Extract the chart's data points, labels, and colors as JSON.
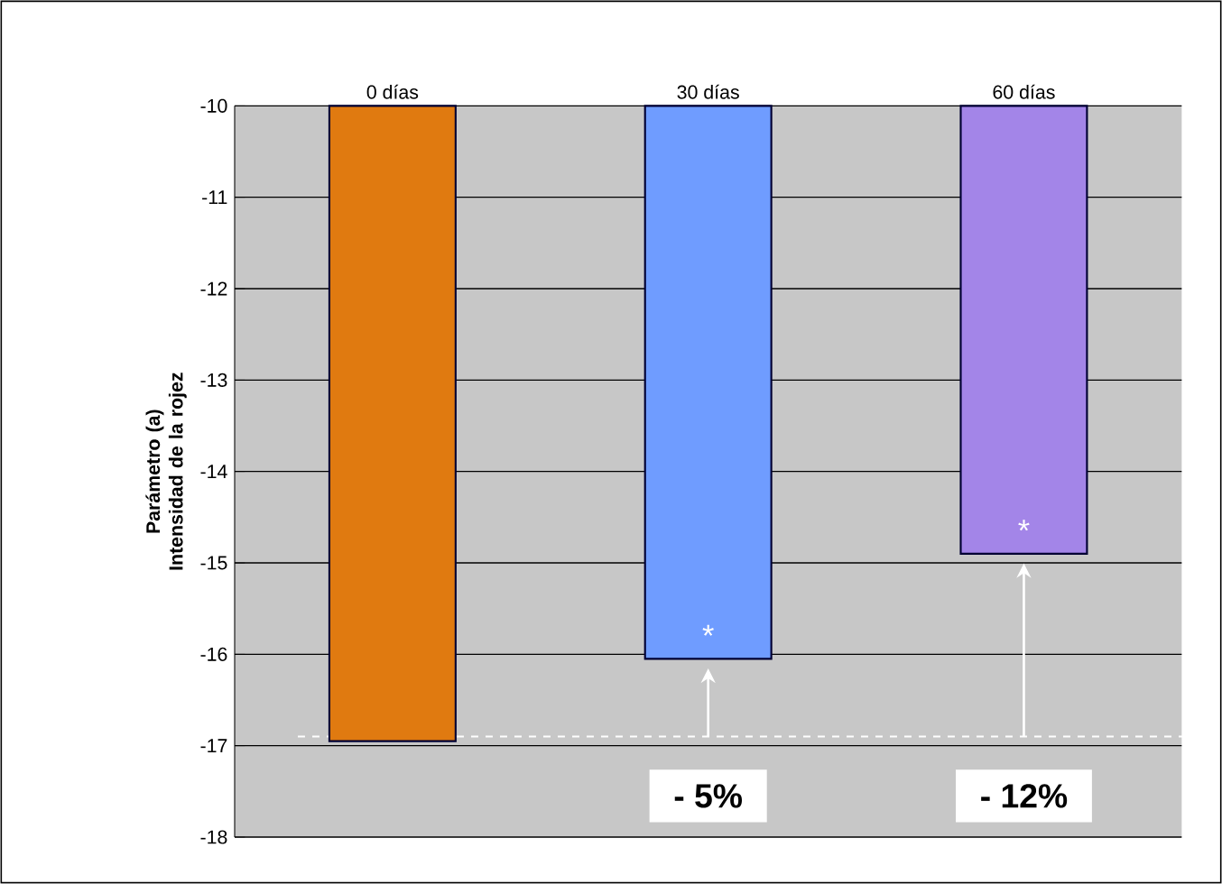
{
  "chart_data": {
    "type": "bar",
    "categories": [
      "0 días",
      "30 días",
      "60 días"
    ],
    "values": [
      -16.95,
      -16.05,
      -14.9
    ],
    "colors": [
      "#e07a10",
      "#6f9cff",
      "#a385e8"
    ],
    "ylabel": "Parámetro (a) Intensidad de la rojez",
    "ylim": [
      -18,
      -10
    ],
    "yticks": [
      -18,
      -17,
      -16,
      -15,
      -14,
      -13,
      -12,
      -11,
      -10
    ],
    "grid": "y",
    "ref_lines": [
      {
        "axis": "y",
        "value": -16.9,
        "color": "#ffffff",
        "line_style": "dashed"
      }
    ],
    "annotations": [
      "*",
      "*",
      "- 5%",
      "- 12%"
    ]
  }
}
